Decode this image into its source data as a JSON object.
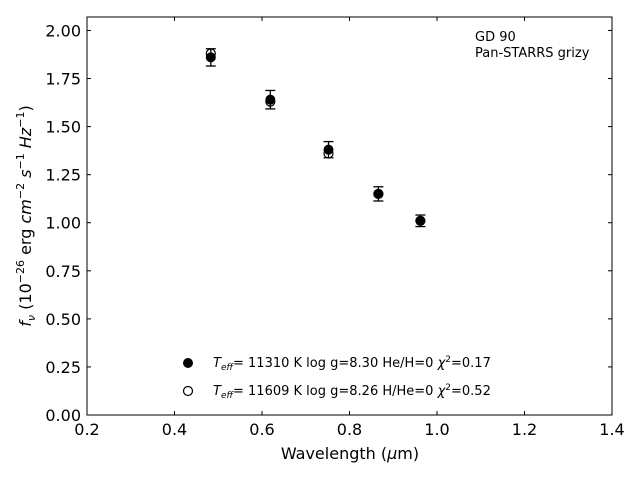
{
  "chart_data": {
    "type": "scatter",
    "title": "",
    "annotation": [
      "GD 90",
      "Pan-STARRS grizy"
    ],
    "xlabel": {
      "text": "Wavelength (",
      "sym": "μ",
      "unit": "m)"
    },
    "ylabel": {
      "f": "f",
      "nu": "ν",
      "pre": " (10",
      "exp": "−26",
      "mid": " erg ",
      "cm": "cm",
      "cmexp": "−2",
      "s": " s",
      "sexp": "−1",
      "hz": " Hz",
      "hzexp": "−1",
      "post": ")"
    },
    "xlim": [
      0.2,
      1.4
    ],
    "ylim": [
      0.0,
      2.07
    ],
    "xticks": [
      "0.2",
      "0.4",
      "0.6",
      "0.8",
      "1.0",
      "1.2",
      "1.4"
    ],
    "yticks": [
      "0.00",
      "0.25",
      "0.50",
      "0.75",
      "1.00",
      "1.25",
      "1.50",
      "1.75",
      "2.00"
    ],
    "grid": false,
    "legend_position": "bottom-center",
    "series": [
      {
        "name": "Teff= 11310 K  log g=8.30  He/H=0  χ2=0.17",
        "label_parts": {
          "t": "T",
          "sub": "eff",
          "rest": "= 11310 K  log g=8.30  He/H=0  ",
          "chi": "χ",
          "chiexp": "2",
          "val": "=0.17"
        },
        "marker": "filled-circle",
        "points": [
          {
            "x": 0.483,
            "y": 1.86,
            "err": 0.045
          },
          {
            "x": 0.619,
            "y": 1.64,
            "err": 0.048
          },
          {
            "x": 0.752,
            "y": 1.38,
            "err": 0.042
          },
          {
            "x": 0.866,
            "y": 1.15,
            "err": 0.037
          },
          {
            "x": 0.962,
            "y": 1.01,
            "err": 0.03
          }
        ]
      },
      {
        "name": "Teff= 11609 K  log g=8.26  H/He=0  χ2=0.52",
        "label_parts": {
          "t": "T",
          "sub": "eff",
          "rest": "= 11609 K  log g=8.26  H/He=0  ",
          "chi": "χ",
          "chiexp": "2",
          "val": "=0.52"
        },
        "marker": "open-circle",
        "points": [
          {
            "x": 0.483,
            "y": 1.88
          },
          {
            "x": 0.619,
            "y": 1.63
          },
          {
            "x": 0.752,
            "y": 1.36
          },
          {
            "x": 0.866,
            "y": 1.15
          },
          {
            "x": 0.962,
            "y": 1.01
          }
        ]
      }
    ]
  }
}
